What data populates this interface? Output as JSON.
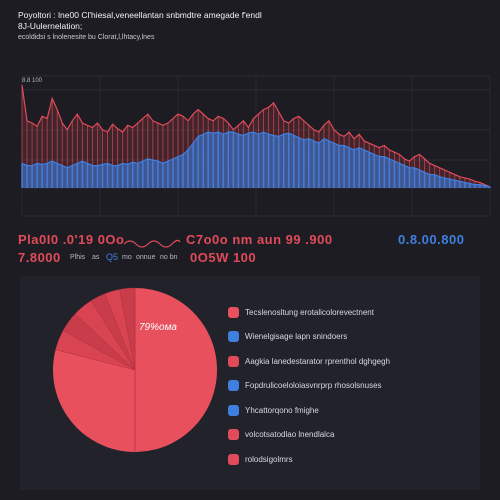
{
  "header": {
    "title_line_1": "Poyoltori : lne00 Cl'hiesal,veneellantan snbmdtre amegade f'endl",
    "title_line_2": "8J-Uulernelation;",
    "subtitle": "ecoldidsi s lnolenesite bu Clorat,l,lhtacy,lnes"
  },
  "stats": {
    "left_big": "Pla0I0 .0'19 0Oo",
    "middle_big": "C7o0o nm aun 99 .900",
    "right_big": "0.8.00.800",
    "left_big_2": "7.8000",
    "small_1": "Plhis",
    "small_2": "as",
    "small_3": "Q5",
    "small_4": "mo",
    "small_5": "onnue",
    "small_6": "no bn",
    "right_big_2": "0O5W 100"
  },
  "colors": {
    "red": "#e14b5a",
    "blue": "#3f7fe0",
    "pie_red": "#e8505e",
    "background": "#1c1c22",
    "panel": "#22222a"
  },
  "chart_data": [
    {
      "type": "area",
      "title": "",
      "xlabel": "",
      "ylabel": "",
      "y_tick_label": "8.8 100",
      "grid": true,
      "x": [
        0,
        1,
        2,
        3,
        4,
        5,
        6,
        7,
        8,
        9,
        10,
        11,
        12,
        13,
        14,
        15,
        16,
        17,
        18,
        19,
        20,
        21,
        22,
        23,
        24,
        25,
        26,
        27,
        28,
        29,
        30,
        31,
        32,
        33,
        34,
        35,
        36,
        37,
        38,
        39,
        40,
        41,
        42,
        43,
        44,
        45,
        46,
        47,
        48,
        49,
        50,
        51,
        52,
        53,
        54,
        55,
        56,
        57,
        58,
        59,
        60,
        61,
        62,
        63,
        64,
        65,
        66,
        67,
        68,
        69,
        70,
        71,
        72,
        73,
        74,
        75,
        76,
        77,
        78,
        79,
        80,
        81,
        82,
        83,
        84,
        85,
        86,
        87,
        88,
        89,
        90,
        91,
        92,
        93
      ],
      "series": [
        {
          "values": [
            92,
            60,
            58,
            55,
            64,
            62,
            80,
            70,
            58,
            52,
            60,
            66,
            58,
            56,
            54,
            58,
            52,
            50,
            57,
            53,
            50,
            56,
            54,
            58,
            62,
            66,
            60,
            58,
            56,
            58,
            62,
            66,
            64,
            60,
            66,
            70,
            66,
            62,
            60,
            64,
            62,
            58,
            52,
            56,
            60,
            54,
            62,
            66,
            70,
            72,
            76,
            68,
            60,
            58,
            62,
            64,
            60,
            56,
            52,
            50,
            56,
            60,
            52,
            48,
            46,
            50,
            44,
            48,
            42,
            40,
            38,
            36,
            38,
            34,
            32,
            30,
            26,
            24,
            28,
            30,
            26,
            22,
            20,
            18,
            16,
            14,
            12,
            10,
            9,
            8,
            6,
            5,
            3,
            1
          ]
        },
        {
          "values": [
            22,
            20,
            20,
            22,
            21,
            22,
            24,
            22,
            20,
            18,
            20,
            22,
            24,
            22,
            20,
            20,
            21,
            22,
            20,
            20,
            22,
            21,
            23,
            22,
            24,
            26,
            25,
            24,
            22,
            24,
            26,
            28,
            30,
            34,
            40,
            46,
            48,
            50,
            49,
            50,
            48,
            50,
            50,
            48,
            47,
            49,
            50,
            48,
            50,
            48,
            47,
            46,
            48,
            49,
            47,
            45,
            43,
            44,
            42,
            40,
            44,
            42,
            40,
            38,
            38,
            36,
            34,
            36,
            34,
            32,
            30,
            28,
            28,
            26,
            24,
            22,
            20,
            18,
            18,
            16,
            14,
            12,
            12,
            10,
            9,
            8,
            7,
            6,
            5,
            4,
            3,
            3,
            2,
            1
          ]
        }
      ],
      "ylim": [
        0,
        100
      ]
    },
    {
      "type": "pie",
      "slice_label": "79%ома",
      "categories": [
        "Tecslenosltung erotalicolorevectnent",
        "Wienelgisage lapn snindoers",
        "Aagkia lanedestarator rprenthol dghgegh",
        "Fopdrulicoeloloiasvnrprp rhosolsnuses",
        "Yhcattorqono fmighe",
        "volcotsatodlao lnendlalca",
        "rolodsigolmrs"
      ],
      "values": [
        79,
        4,
        4,
        4,
        3,
        3,
        3
      ],
      "colors": [
        "#e8505e",
        "#3f7fe0",
        "#e14b5a",
        "#3f7fe0",
        "#3f7fe0",
        "#e14b5a",
        "#e14b5a"
      ]
    }
  ]
}
